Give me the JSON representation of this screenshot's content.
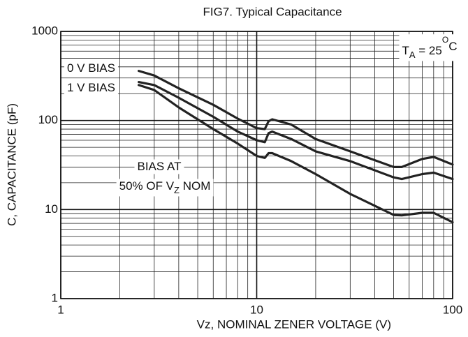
{
  "chart_data": {
    "type": "line",
    "title": "FIG7. Typical Capacitance",
    "x_label": "Vz, NOMINAL ZENER VOLTAGE (V)",
    "y_label": "C, CAPACITANCE (pF)",
    "x": [
      2.5,
      3,
      4,
      6,
      8,
      10,
      11,
      11.5,
      12,
      15,
      20,
      30,
      50,
      55,
      70,
      80,
      100
    ],
    "series": [
      {
        "color": "#222222",
        "values": [
          360,
          320,
          230,
          150,
          105,
          82,
          80,
          98,
          103,
          90,
          62,
          45,
          30,
          30,
          37,
          39,
          32
        ]
      },
      {
        "color": "#222222",
        "values": [
          270,
          250,
          180,
          110,
          75,
          60,
          57,
          72,
          75,
          62,
          45,
          35,
          23,
          22,
          25,
          26,
          22
        ]
      },
      {
        "color": "#222222",
        "values": [
          250,
          220,
          140,
          80,
          55,
          40,
          38,
          43,
          43,
          35,
          25,
          15,
          8.7,
          8.6,
          9.2,
          9.2,
          7.2
        ]
      }
    ],
    "annotations": [
      [
        {
          "text": "0 V BIAS"
        }
      ],
      [
        {
          "text": "1 V BIAS"
        }
      ],
      [
        {
          "text": "BIAS AT"
        }
      ],
      [
        {
          "text": "50% OF V"
        },
        {
          "sub": "Z"
        },
        {
          "text": " NOM"
        }
      ],
      [
        {
          "text": "T"
        },
        {
          "sub": "A"
        },
        {
          "text": " = 25"
        },
        {
          "sup": "O"
        },
        {
          "text": "C"
        }
      ]
    ],
    "xlim": [
      1,
      100
    ],
    "ylim": [
      1,
      1000
    ],
    "xticks": [
      1,
      10,
      100
    ],
    "yticks": [
      1,
      10,
      100,
      1000
    ],
    "log_x": true,
    "log_y": true,
    "grid": true
  }
}
